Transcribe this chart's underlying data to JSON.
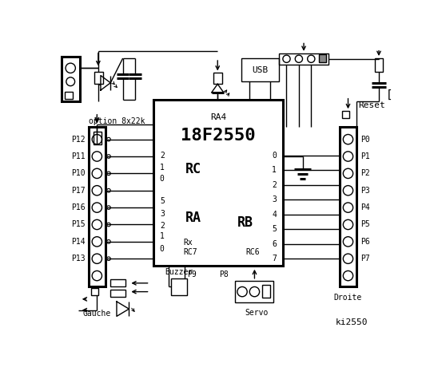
{
  "bg_color": "#ffffff",
  "fg_color": "#000000",
  "chip_label": "18F2550",
  "chip_sublabel": "RA4",
  "rc_label": "RC",
  "ra_label": "RA",
  "rb_label": "RB",
  "left_pins": [
    "P12",
    "P11",
    "P10",
    "P17",
    "P16",
    "P15",
    "P14",
    "P13"
  ],
  "rc_numbers": [
    "2",
    "1",
    "0"
  ],
  "ra_numbers": [
    "5",
    "3",
    "2",
    "1",
    "0"
  ],
  "right_pins": [
    "P0",
    "P1",
    "P2",
    "P3",
    "P4",
    "P5",
    "P6",
    "P7"
  ],
  "rb_numbers": [
    "0",
    "1",
    "2",
    "3",
    "4",
    "5",
    "6",
    "7"
  ],
  "usb_label": "USB",
  "rc6_label": "RC6",
  "rc7_label": "RC7",
  "rx_label": "Rx",
  "gauche_label": "Gauche",
  "droite_label": "Droite",
  "reset_label": "Reset",
  "option_label": "option 8x22k",
  "buzzer_label": "Buzzer",
  "p9_label": "P9",
  "p8_label": "P8",
  "servo_label": "Servo",
  "title_label": "ki2550"
}
